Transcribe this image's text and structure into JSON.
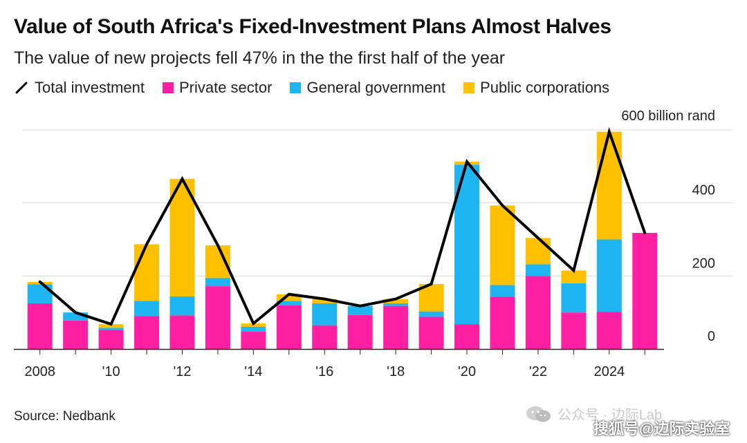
{
  "title": "Value of South Africa's Fixed-Investment Plans Almost Halves",
  "subtitle": "The value of new projects fell 47% in the the first half of the year",
  "source": "Source: Nedbank",
  "watermark": {
    "line1": "公众号 · 边际Lab",
    "line2": "搜狐号@边际实验室"
  },
  "legend": [
    {
      "label": "Total investment",
      "kind": "line",
      "color": "#000000"
    },
    {
      "label": "Private sector",
      "kind": "swatch",
      "color": "#ff1fa2"
    },
    {
      "label": "General government",
      "kind": "swatch",
      "color": "#1fb4f2"
    },
    {
      "label": "Public corporations",
      "kind": "swatch",
      "color": "#ffc000"
    }
  ],
  "chart_data": {
    "type": "bar",
    "stacked": true,
    "years": [
      2008,
      2009,
      2010,
      2011,
      2012,
      2013,
      2014,
      2015,
      2016,
      2017,
      2018,
      2019,
      2020,
      2021,
      2022,
      2023,
      2024,
      2025
    ],
    "x_tick_labels": [
      "2008",
      "",
      "'10",
      "",
      "'12",
      "",
      "'14",
      "",
      "'16",
      "",
      "'18",
      "",
      "'20",
      "",
      "'22",
      "",
      "2024",
      ""
    ],
    "series": [
      {
        "name": "Private sector",
        "color": "#ff1fa2",
        "values": [
          125,
          78,
          52,
          90,
          92,
          172,
          48,
          120,
          65,
          93,
          118,
          88,
          68,
          143,
          200,
          100,
          102,
          318
        ]
      },
      {
        "name": "General government",
        "color": "#1fb4f2",
        "values": [
          52,
          22,
          6,
          42,
          52,
          22,
          13,
          12,
          60,
          25,
          7,
          15,
          437,
          32,
          32,
          80,
          198,
          0
        ]
      },
      {
        "name": "Public corporations",
        "color": "#ffc000",
        "values": [
          7,
          0,
          10,
          155,
          322,
          90,
          9,
          18,
          12,
          0,
          12,
          75,
          8,
          218,
          72,
          35,
          295,
          0
        ]
      }
    ],
    "line": {
      "name": "Total investment",
      "color": "#000000",
      "values": [
        184,
        100,
        68,
        287,
        466,
        284,
        70,
        150,
        137,
        118,
        137,
        178,
        513,
        393,
        304,
        215,
        595,
        318
      ]
    },
    "y_axis": {
      "min": 0,
      "max": 600,
      "ticks": [
        0,
        200,
        400,
        600
      ],
      "tick_labels": [
        "0",
        "200",
        "400",
        "600 billion rand"
      ],
      "position": "right"
    },
    "grid": true
  }
}
